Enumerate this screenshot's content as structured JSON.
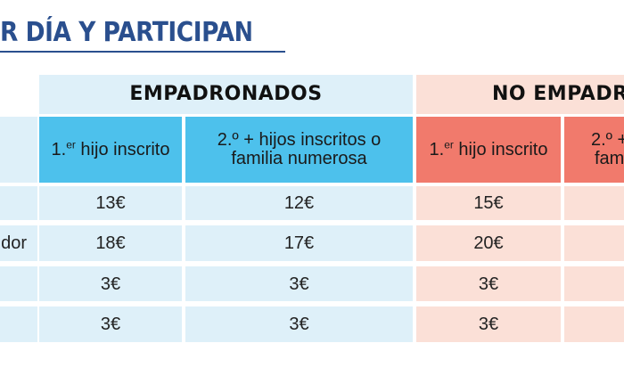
{
  "title": "R DÍA Y PARTICIPANTE",
  "groups": {
    "empadronados": "EMPADRONADOS",
    "no_empadronados": "NO EMPADR"
  },
  "subheaders": {
    "first_prefix": "1.",
    "first_sup": "er",
    "first_rest": " hijo inscrito",
    "second_line1": "2.º + hijos inscritos o",
    "second_line2": "familia numerosa",
    "clip_line1": "2.º +",
    "clip_line2": "fam"
  },
  "rows": [
    {
      "label": "",
      "values": [
        "13€",
        "12€",
        "15€",
        ""
      ]
    },
    {
      "label": "dor",
      "values": [
        "18€",
        "17€",
        "20€",
        ""
      ]
    },
    {
      "label": "",
      "values": [
        "3€",
        "3€",
        "3€",
        ""
      ]
    },
    {
      "label": "",
      "values": [
        "3€",
        "3€",
        "3€",
        ""
      ]
    }
  ],
  "colors": {
    "title": "#2a4f8e",
    "empadronados_light": "#def0f9",
    "empadronados_strong": "#4dc1ec",
    "no_empadronados_light": "#fbe0d7",
    "no_empadronados_strong": "#f17a6c"
  }
}
